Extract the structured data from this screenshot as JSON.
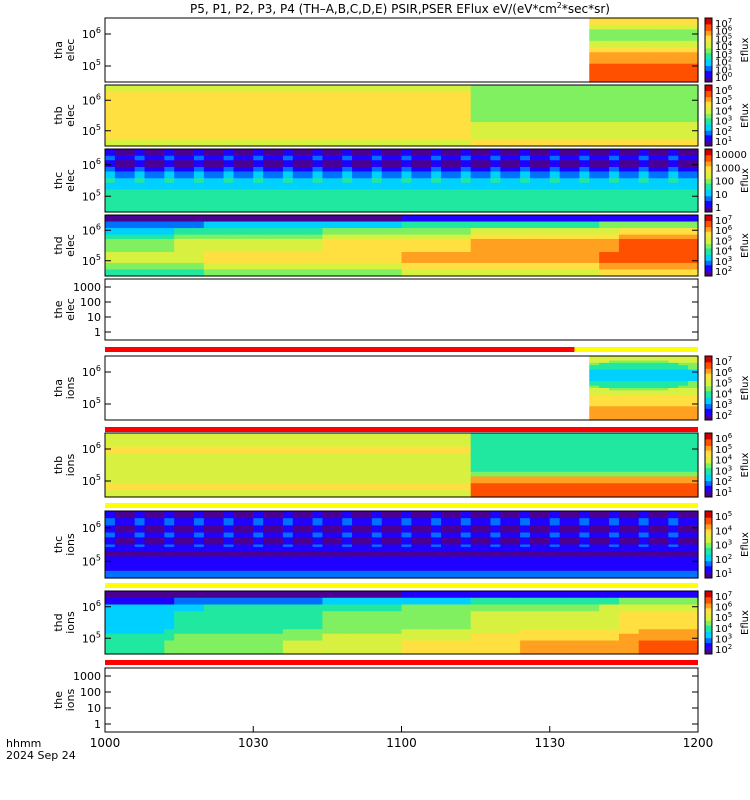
{
  "chart_data": {
    "type": "heatmap",
    "title": {
      "text": "P5, P1, P2, P3, P4 (TH–A,B,C,D,E) PSIR,PSER EFlux eV/(eV*cm",
      "sup": "2",
      "tail": "*sec*sr)"
    },
    "x_axis": {
      "ticks": [
        "1000",
        "1030",
        "1100",
        "1130",
        "1200"
      ],
      "label_line1": "hhmm",
      "label_line2": "2024 Sep 24",
      "range_minutes": [
        0,
        120
      ]
    },
    "colormap": [
      "#4a0090",
      "#2000ff",
      "#0070ff",
      "#00d0ff",
      "#20e8a0",
      "#80f060",
      "#d8f040",
      "#ffe040",
      "#ffa020",
      "#ff5000",
      "#d00000"
    ],
    "colorbar_label": "Eflux",
    "panels": [
      {
        "id": "tha_elec",
        "ylabel": [
          "tha",
          "elec"
        ],
        "yscale": "log",
        "yticks": [
          {
            "base": "10",
            "exp": "6"
          },
          {
            "base": "10",
            "exp": "5"
          }
        ],
        "colorbar_ticks": [
          {
            "base": "10",
            "exp": "7"
          },
          {
            "base": "10",
            "exp": "6"
          },
          {
            "base": "10",
            "exp": "5"
          },
          {
            "base": "10",
            "exp": "4"
          },
          {
            "base": "10",
            "exp": "3"
          },
          {
            "base": "10",
            "exp": "2"
          },
          {
            "base": "10",
            "exp": "1"
          },
          {
            "base": "10",
            "exp": "0"
          }
        ],
        "data_start_minutes": 99,
        "rows_top_to_bottom": [
          7,
          6,
          5,
          5,
          6,
          7,
          8,
          8,
          9,
          9,
          9
        ]
      },
      {
        "id": "thb_elec",
        "ylabel": [
          "thb",
          "elec"
        ],
        "yscale": "log",
        "yticks": [
          {
            "base": "10",
            "exp": "6"
          },
          {
            "base": "10",
            "exp": "5"
          }
        ],
        "colorbar_ticks": [
          {
            "base": "10",
            "exp": "6"
          },
          {
            "base": "10",
            "exp": "5"
          },
          {
            "base": "10",
            "exp": "4"
          },
          {
            "base": "10",
            "exp": "3"
          },
          {
            "base": "10",
            "exp": "2"
          },
          {
            "base": "10",
            "exp": "1"
          }
        ],
        "segments_before_116": [
          6,
          7,
          7,
          7,
          7,
          7,
          7,
          7,
          7,
          6
        ],
        "segments_after_116": [
          5,
          5,
          5,
          5,
          5,
          5,
          6,
          6,
          6,
          7
        ],
        "switch_minutes": 75
      },
      {
        "id": "thc_elec",
        "ylabel": [
          "thc",
          "elec"
        ],
        "yscale": "log",
        "yticks": [
          {
            "base": "10",
            "exp": "6"
          },
          {
            "base": "10",
            "exp": "5"
          }
        ],
        "colorbar_ticks": [
          {
            "label": "10000"
          },
          {
            "label": "1000"
          },
          {
            "label": "100"
          },
          {
            "label": "10"
          },
          {
            "label": "1"
          }
        ],
        "rows_top_to_bottom": [
          0,
          1,
          0,
          1,
          2,
          3,
          3,
          4,
          4,
          4,
          4
        ]
      },
      {
        "id": "thd_elec",
        "ylabel": [
          "thd",
          "elec"
        ],
        "yscale": "log",
        "yticks": [
          {
            "base": "10",
            "exp": "6"
          },
          {
            "base": "10",
            "exp": "5"
          }
        ],
        "colorbar_ticks": [
          {
            "base": "10",
            "exp": "7"
          },
          {
            "base": "10",
            "exp": "6"
          },
          {
            "base": "10",
            "exp": "5"
          },
          {
            "base": "10",
            "exp": "4"
          },
          {
            "base": "10",
            "exp": "3"
          },
          {
            "base": "10",
            "exp": "2"
          }
        ],
        "rows_start": [
          0,
          2,
          3,
          4,
          5,
          5,
          6,
          6,
          5,
          4
        ],
        "rows_end": [
          1,
          5,
          7,
          8,
          9,
          9,
          9,
          9,
          8,
          7
        ]
      },
      {
        "id": "the_elec",
        "ylabel": [
          "the",
          "elec"
        ],
        "yscale": "log",
        "yticks": [
          {
            "label": "1000"
          },
          {
            "label": "100"
          },
          {
            "label": "10"
          },
          {
            "label": "1"
          }
        ],
        "empty": true,
        "flag_bar": {
          "red_until_minutes": 95,
          "then": "yellow"
        }
      },
      {
        "id": "tha_ions",
        "ylabel": [
          "tha",
          "ions"
        ],
        "yscale": "log",
        "yticks": [
          {
            "base": "10",
            "exp": "6"
          },
          {
            "base": "10",
            "exp": "5"
          }
        ],
        "colorbar_ticks": [
          {
            "base": "10",
            "exp": "7"
          },
          {
            "base": "10",
            "exp": "6"
          },
          {
            "base": "10",
            "exp": "5"
          },
          {
            "base": "10",
            "exp": "4"
          },
          {
            "base": "10",
            "exp": "3"
          },
          {
            "base": "10",
            "exp": "2"
          }
        ],
        "data_start_minutes": 99,
        "rows_top_to_bottom": [
          6,
          5,
          4,
          4,
          5,
          6,
          7,
          7,
          8,
          8
        ],
        "flag_bar": {
          "red_until_minutes": 120,
          "then": "red"
        }
      },
      {
        "id": "thb_ions",
        "ylabel": [
          "thb",
          "ions"
        ],
        "yscale": "log",
        "yticks": [
          {
            "base": "10",
            "exp": "6"
          },
          {
            "base": "10",
            "exp": "5"
          }
        ],
        "colorbar_ticks": [
          {
            "base": "10",
            "exp": "6"
          },
          {
            "base": "10",
            "exp": "5"
          },
          {
            "base": "10",
            "exp": "4"
          },
          {
            "base": "10",
            "exp": "3"
          },
          {
            "base": "10",
            "exp": "2"
          },
          {
            "base": "10",
            "exp": "1"
          }
        ],
        "segments_before_116": [
          6,
          6,
          7,
          6,
          6,
          6,
          6,
          6,
          7,
          6
        ],
        "segments_after_116": [
          4,
          4,
          4,
          4,
          4,
          4,
          5,
          8,
          9,
          9
        ],
        "switch_minutes": 75,
        "flag_bar": {
          "red_until_minutes": 0,
          "then": "yellow"
        }
      },
      {
        "id": "thc_ions",
        "ylabel": [
          "thc",
          "ions"
        ],
        "yscale": "log",
        "yticks": [
          {
            "base": "10",
            "exp": "6"
          },
          {
            "base": "10",
            "exp": "5"
          }
        ],
        "colorbar_ticks": [
          {
            "base": "10",
            "exp": "5"
          },
          {
            "base": "10",
            "exp": "4"
          },
          {
            "base": "10",
            "exp": "3"
          },
          {
            "base": "10",
            "exp": "2"
          },
          {
            "base": "10",
            "exp": "1"
          }
        ],
        "rows_top_to_bottom": [
          0,
          1,
          0,
          1,
          0,
          1,
          0,
          1,
          1,
          2
        ],
        "flag_bar": {
          "red_until_minutes": 0,
          "then": "yellow"
        }
      },
      {
        "id": "thd_ions",
        "ylabel": [
          "thd",
          "ions"
        ],
        "yscale": "log",
        "yticks": [
          {
            "base": "10",
            "exp": "6"
          },
          {
            "base": "10",
            "exp": "5"
          }
        ],
        "colorbar_ticks": [
          {
            "base": "10",
            "exp": "7"
          },
          {
            "base": "10",
            "exp": "6"
          },
          {
            "base": "10",
            "exp": "5"
          },
          {
            "base": "10",
            "exp": "4"
          },
          {
            "base": "10",
            "exp": "3"
          },
          {
            "base": "10",
            "exp": "2"
          }
        ],
        "rows_start": [
          0,
          1,
          3,
          3,
          3,
          3,
          3,
          4,
          4,
          4
        ],
        "rows_end": [
          1,
          5,
          6,
          7,
          7,
          7,
          8,
          8,
          9,
          9
        ],
        "flag_bar": {
          "red_until_minutes": 120,
          "then": "red"
        }
      },
      {
        "id": "the_ions",
        "ylabel": [
          "the",
          "ions"
        ],
        "yscale": "log",
        "yticks": [
          {
            "label": "1000"
          },
          {
            "label": "100"
          },
          {
            "label": "10"
          },
          {
            "label": "1"
          }
        ],
        "empty": true
      }
    ]
  }
}
